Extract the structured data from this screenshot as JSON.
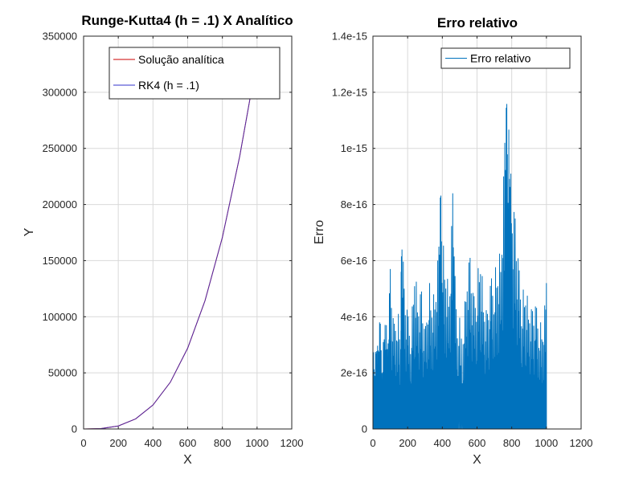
{
  "colors": {
    "analytic": "#cc0000",
    "rk4": "#3333cc",
    "error": "#0072bd",
    "grid": "#d9d9d9",
    "axis": "#262626"
  },
  "chart_data": [
    {
      "type": "line",
      "title": "Runge-Kutta4 (h = .1) X Analítico",
      "xlabel": "X",
      "ylabel": "Y",
      "xlim": [
        0,
        1200
      ],
      "ylim": [
        0,
        350000
      ],
      "xticks": [
        0,
        200,
        400,
        600,
        800,
        1000,
        1200
      ],
      "yticks": [
        0,
        50000,
        100000,
        150000,
        200000,
        250000,
        300000,
        350000
      ],
      "xtick_labels": [
        "0",
        "200",
        "400",
        "600",
        "800",
        "1000",
        "1200"
      ],
      "ytick_labels": [
        "0",
        "50000",
        "100000",
        "150000",
        "200000",
        "250000",
        "300000",
        "350000"
      ],
      "grid": true,
      "legend_position": "top-right",
      "series": [
        {
          "name": "Solução analítica",
          "x": [
            0,
            100,
            200,
            300,
            400,
            500,
            600,
            700,
            800,
            900,
            960
          ],
          "values": [
            0,
            333,
            2667,
            9000,
            21333,
            41667,
            72000,
            114333,
            170667,
            243000,
            294912
          ]
        },
        {
          "name": "RK4 (h = .1)",
          "x": [
            0,
            100,
            200,
            300,
            400,
            500,
            600,
            700,
            800,
            900,
            960
          ],
          "values": [
            0,
            333,
            2667,
            9000,
            21333,
            41667,
            72000,
            114333,
            170667,
            243000,
            294912
          ]
        }
      ]
    },
    {
      "type": "line",
      "title": "Erro relativo",
      "xlabel": "X",
      "ylabel": "Erro",
      "xlim": [
        0,
        1200
      ],
      "ylim": [
        0,
        1.4e-15
      ],
      "xticks": [
        0,
        200,
        400,
        600,
        800,
        1000,
        1200
      ],
      "yticks": [
        0,
        2e-16,
        4e-16,
        6e-16,
        8e-16,
        1e-15,
        1.2e-15,
        1.4e-15
      ],
      "xtick_labels": [
        "0",
        "200",
        "400",
        "600",
        "800",
        "1000",
        "1200"
      ],
      "ytick_labels": [
        "0",
        "2e-16",
        "4e-16",
        "6e-16",
        "8e-16",
        "1e-15",
        "1.2e-15",
        "1.4e-15"
      ],
      "grid": true,
      "legend_position": "top-right",
      "series": [
        {
          "name": "Erro relativo",
          "x": [
            0,
            10,
            20,
            30,
            40,
            55,
            70,
            85,
            100,
            120,
            140,
            160,
            165,
            180,
            200,
            220,
            240,
            260,
            280,
            300,
            320,
            340,
            360,
            380,
            390,
            400,
            420,
            440,
            460,
            470,
            490,
            520,
            540,
            560,
            580,
            600,
            620,
            640,
            660,
            680,
            700,
            720,
            740,
            760,
            770,
            780,
            790,
            800,
            820,
            840,
            860,
            880,
            900,
            920,
            940,
            960,
            980,
            1000
          ],
          "values": [
            3e-16,
            2.2e-16,
            3.3e-16,
            2.8e-16,
            4e-16,
            2.5e-16,
            4.3e-16,
            3.1e-16,
            5.7e-16,
            3.6e-16,
            4.5e-16,
            3.3e-16,
            7.9e-16,
            5e-16,
            4.1e-16,
            3.6e-16,
            5.9e-16,
            4.6e-16,
            4.9e-16,
            3.3e-16,
            5.5e-16,
            4.6e-16,
            5e-16,
            6.5e-16,
            8.6e-16,
            6.9e-16,
            5.8e-16,
            4.9e-16,
            8.4e-16,
            5.7e-16,
            4.2e-16,
            3.5e-16,
            5.6e-16,
            6.1e-16,
            4.6e-16,
            5.4e-16,
            6.4e-16,
            4.5e-16,
            4.1e-16,
            5.3e-16,
            5.7e-16,
            5.9e-16,
            6.6e-16,
            1.02e-15,
            1.17e-15,
            1.1e-15,
            1e-15,
            8.2e-16,
            7.5e-16,
            5.8e-16,
            4.9e-16,
            5.1e-16,
            4.4e-16,
            4.2e-16,
            4.4e-16,
            3.9e-16,
            3.6e-16,
            5.2e-16
          ]
        }
      ]
    }
  ]
}
